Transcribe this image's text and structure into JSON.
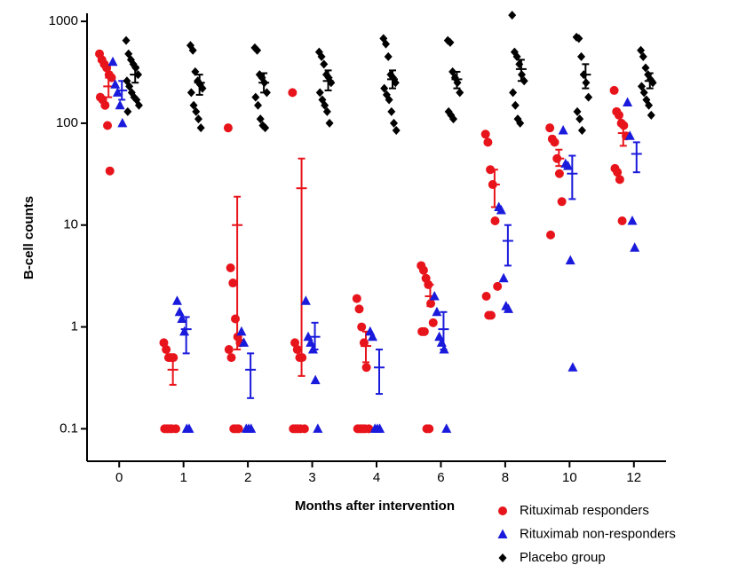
{
  "chart_data": {
    "type": "scatter",
    "y_label": "B-cell counts",
    "x_label": "Months after intervention",
    "categories": [
      "0",
      "1",
      "2",
      "3",
      "4",
      "6",
      "8",
      "10",
      "12"
    ],
    "log_scale": true,
    "ylim": [
      0.048,
      1200
    ],
    "yticks": [
      0.1,
      1,
      10,
      100,
      1000
    ],
    "legend": "bottom-right",
    "series": [
      {
        "name": "Rituximab responders",
        "color": "#e8141b",
        "marker": "circle",
        "points": [
          [
            480,
            420,
            380,
            350,
            300,
            280,
            180,
            170,
            150,
            95,
            34
          ],
          [
            0.7,
            0.6,
            0.5,
            0.5,
            0.5,
            0.1,
            0.1,
            0.1,
            0.1,
            0.1
          ],
          [
            90,
            3.8,
            2.7,
            1.2,
            0.8,
            0.7,
            0.6,
            0.5,
            0.1,
            0.1,
            0.1
          ],
          [
            200,
            0.7,
            0.6,
            0.5,
            0.5,
            0.1,
            0.1,
            0.1,
            0.1,
            0.1
          ],
          [
            1.9,
            1.5,
            1.0,
            0.7,
            0.4,
            0.1,
            0.1,
            0.1,
            0.1,
            0.1
          ],
          [
            4,
            3.6,
            3.0,
            2.6,
            1.7,
            1.1,
            0.9,
            0.9,
            0.1,
            0.1
          ],
          [
            78,
            65,
            35,
            25,
            11,
            2.5,
            2.0,
            1.3,
            1.3
          ],
          [
            90,
            70,
            65,
            45,
            32,
            17,
            8
          ],
          [
            210,
            130,
            120,
            100,
            95,
            75,
            36,
            33,
            28,
            11
          ]
        ],
        "means": [
          230,
          0.38,
          10,
          23,
          0.65,
          2.0,
          25,
          45,
          80
        ],
        "lower": [
          180,
          0.27,
          0.6,
          0.33,
          0.45,
          1.6,
          15,
          38,
          60
        ],
        "upper": [
          280,
          0.5,
          19,
          45,
          0.9,
          2.6,
          35,
          55,
          100
        ]
      },
      {
        "name": "Rituximab non-responders",
        "color": "#1a1adc",
        "marker": "triangle",
        "points": [
          [
            400,
            240,
            200,
            150,
            100
          ],
          [
            1.8,
            1.4,
            1.2,
            0.9,
            0.1,
            0.1
          ],
          [
            0.9,
            0.7,
            0.1,
            0.1,
            0.1
          ],
          [
            1.8,
            0.8,
            0.7,
            0.6,
            0.3,
            0.1
          ],
          [
            0.9,
            0.8,
            0.1,
            0.1,
            0.1
          ],
          [
            2.0,
            1.4,
            0.8,
            0.7,
            0.6,
            0.1
          ],
          [
            15,
            14,
            3,
            1.6,
            1.5
          ],
          [
            85,
            40,
            38,
            4.5,
            0.4
          ],
          [
            160,
            75,
            11,
            6
          ]
        ],
        "means": [
          210,
          0.95,
          0.38,
          0.8,
          0.4,
          0.95,
          7,
          32,
          50
        ],
        "lower": [
          170,
          0.55,
          0.2,
          0.6,
          0.22,
          0.6,
          4,
          18,
          33
        ],
        "upper": [
          260,
          1.25,
          0.55,
          1.1,
          0.6,
          1.4,
          10,
          48,
          65
        ]
      },
      {
        "name": "Placebo group",
        "color": "#000000",
        "marker": "diamond",
        "points": [
          [
            650,
            480,
            420,
            380,
            350,
            300,
            260,
            230,
            200,
            180,
            170,
            150,
            130
          ],
          [
            580,
            520,
            320,
            260,
            240,
            220,
            200,
            150,
            130,
            110,
            90
          ],
          [
            550,
            520,
            300,
            280,
            250,
            200,
            180,
            150,
            110,
            95,
            90
          ],
          [
            500,
            450,
            380,
            300,
            280,
            250,
            200,
            170,
            150,
            130,
            100
          ],
          [
            680,
            600,
            450,
            300,
            280,
            250,
            220,
            190,
            170,
            130,
            100,
            85
          ],
          [
            650,
            620,
            320,
            280,
            250,
            200,
            130,
            120,
            110
          ],
          [
            1150,
            500,
            450,
            380,
            300,
            260,
            200,
            150,
            110,
            100
          ],
          [
            700,
            680,
            450,
            300,
            250,
            180,
            130,
            110,
            85
          ],
          [
            520,
            450,
            350,
            300,
            270,
            250,
            230,
            200,
            170,
            150,
            120
          ]
        ],
        "means": [
          300,
          250,
          250,
          260,
          270,
          270,
          340,
          300,
          260
        ],
        "lower": [
          250,
          190,
          200,
          210,
          220,
          220,
          260,
          220,
          220
        ],
        "upper": [
          360,
          300,
          310,
          330,
          330,
          320,
          420,
          380,
          310
        ]
      }
    ]
  }
}
